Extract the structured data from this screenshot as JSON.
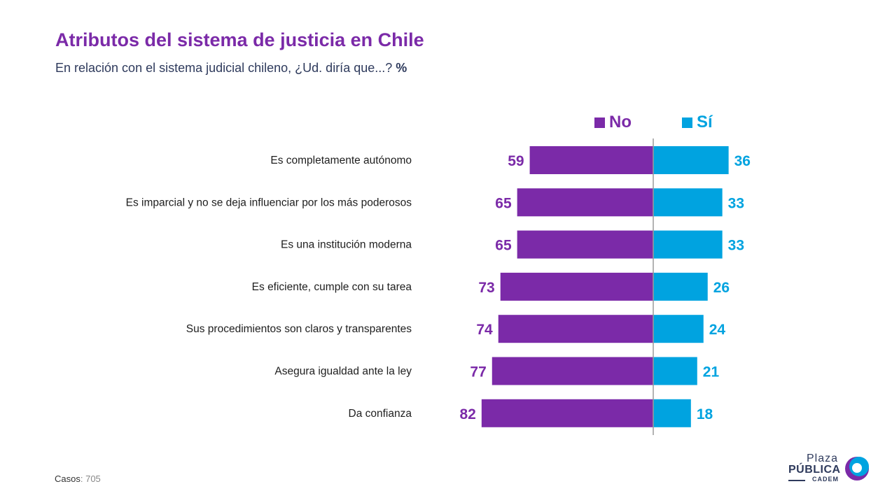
{
  "title": "Atributos del sistema de justicia en Chile",
  "subtitle": "En relación con el sistema judicial chileno, ¿Ud. diría que...?",
  "subtitle_unit": "%",
  "legend": {
    "no_label": "No",
    "si_label": "Sí"
  },
  "colors": {
    "no": "#7B2AA8",
    "si": "#00A3E0",
    "title": "#7B2AA8",
    "axis": "#9A9A9A"
  },
  "chart_data": {
    "type": "bar",
    "orientation": "horizontal-diverging",
    "categories": [
      "Es completamente autónomo",
      "Es imparcial y no se deja influenciar por los más poderosos",
      "Es una institución moderna",
      "Es eficiente, cumple con su tarea",
      "Sus procedimientos son claros y transparentes",
      "Asegura igualdad ante la ley",
      "Da confianza"
    ],
    "series": [
      {
        "name": "No",
        "values": [
          59,
          65,
          65,
          73,
          74,
          77,
          82
        ]
      },
      {
        "name": "Sí",
        "values": [
          36,
          33,
          33,
          26,
          24,
          21,
          18
        ]
      }
    ],
    "legend_position": "top",
    "grid": false
  },
  "footer": {
    "cases_label": "Casos",
    "cases_value": ": 705"
  },
  "logo": {
    "line1": "Plaza",
    "line2": "PÚBLICA",
    "line3": "CADEM"
  }
}
